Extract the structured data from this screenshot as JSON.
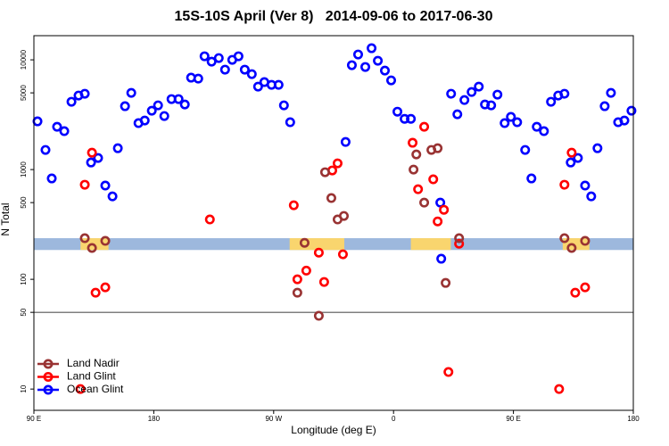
{
  "chart_data": {
    "type": "scatter",
    "title": "15S-10S April (Ver 8)   2014-09-06 to 2017-06-30",
    "x_label": "Longitude (deg E)",
    "y_label": "N Total",
    "xlim": [
      90,
      540
    ],
    "xticks": [
      {
        "value": 90,
        "label": "90 E"
      },
      180,
      {
        "value": 270,
        "label": "90 W"
      },
      {
        "value": 360,
        "label": "0"
      },
      {
        "value": 450,
        "label": "90 E"
      },
      {
        "value": 540,
        "label": "180"
      }
    ],
    "ylim": [
      6.4,
      16600
    ],
    "yticks": [
      10,
      50,
      100,
      500,
      1000,
      5000,
      10000
    ],
    "log_y": true,
    "reference_line": 50,
    "band": {
      "ylim": [
        185,
        237
      ],
      "color": "#9db8dd",
      "highlight_color": "#f9d56e",
      "highlights": [
        [
          125,
          146
        ],
        [
          282,
          323
        ],
        [
          373,
          403
        ],
        [
          487,
          507
        ]
      ]
    },
    "legend": "bottom-left",
    "series": [
      {
        "name": "Land Nadir",
        "color": "#993333",
        "x": [
          128.2,
          133.6,
          143.6,
          287.8,
          293.2,
          303.9,
          308.6,
          313.3,
          318.0,
          322.7,
          375.0,
          377.1,
          383.0,
          388.4,
          393.1,
          399.1,
          409.2,
          488.3,
          493.7,
          503.8
        ],
        "values": [
          237,
          193,
          224,
          75.5,
          215,
          46.5,
          946,
          550,
          351,
          378,
          1000,
          1374,
          500,
          1510,
          1565,
          92.7,
          237,
          237,
          193,
          224
        ]
      },
      {
        "name": "Land Glint",
        "color": "#ff0000",
        "x": [
          128.2,
          133.6,
          136.3,
          143.6,
          124.9,
          222.1,
          285.1,
          287.8,
          294.5,
          303.9,
          307.9,
          314.0,
          318.0,
          322.0,
          374.3,
          378.4,
          383.0,
          389.8,
          393.1,
          397.8,
          401.2,
          409.2,
          484.3,
          488.3,
          493.7,
          496.4,
          503.8
        ],
        "values": [
          728,
          1425,
          75.5,
          84.5,
          10,
          351,
          473,
          100,
          120,
          175,
          94.6,
          982,
          1140,
          169,
          1755,
          662,
          2455,
          815,
          337,
          430,
          14.3,
          211,
          10,
          728,
          1425,
          75.5,
          84.5
        ]
      },
      {
        "name": "Ocean Glint",
        "color": "#0000ff",
        "x": [
          92.7,
          98.7,
          103.4,
          107.4,
          112.8,
          118.2,
          123.5,
          128.2,
          132.9,
          138.2,
          143.6,
          149.0,
          153.0,
          158.4,
          163.1,
          168.5,
          173.2,
          178.5,
          183.2,
          187.9,
          193.3,
          198.6,
          203.3,
          208.0,
          213.4,
          218.1,
          223.4,
          228.8,
          233.5,
          238.9,
          243.6,
          248.3,
          253.6,
          258.3,
          263.0,
          268.4,
          273.7,
          277.7,
          282.4,
          324.0,
          328.7,
          333.4,
          338.8,
          343.5,
          348.2,
          353.5,
          358.2,
          362.9,
          368.3,
          373.0,
          395.1,
          395.8,
          403.2,
          407.9,
          413.2,
          418.6,
          424.0,
          428.6,
          433.3,
          438.0,
          443.4,
          448.1,
          452.8,
          458.8,
          463.5,
          467.5,
          472.9,
          478.2,
          483.6,
          488.3,
          493.0,
          498.4,
          503.8,
          508.4,
          513.1,
          518.5,
          523.2,
          528.6,
          533.3,
          538.6
        ],
        "values": [
          2750,
          1510,
          830,
          2455,
          2240,
          4150,
          4730,
          4910,
          1160,
          1275,
          715,
          570,
          1565,
          3780,
          5000,
          2650,
          2800,
          3440,
          3850,
          3075,
          4390,
          4390,
          3920,
          6880,
          6740,
          10780,
          9630,
          10380,
          8140,
          10000,
          10780,
          8140,
          7410,
          5700,
          6270,
          5920,
          5920,
          3850,
          2700,
          1785,
          8940,
          11190,
          8610,
          12760,
          9810,
          7980,
          6500,
          3370,
          2900,
          2900,
          500,
          154,
          4910,
          3190,
          4300,
          5090,
          5700,
          3920,
          3850,
          4820,
          2650,
          3020,
          2700,
          1510,
          830,
          2455,
          2240,
          4150,
          4730,
          4910,
          1160,
          1275,
          715,
          570,
          1565,
          3780,
          5000,
          2700,
          2800,
          3440
        ]
      }
    ]
  }
}
